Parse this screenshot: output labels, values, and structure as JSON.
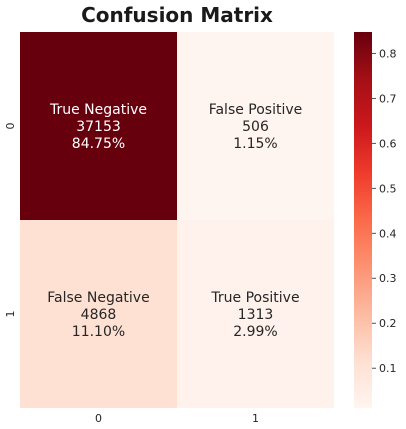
{
  "chart_data": {
    "type": "heatmap",
    "title": "Confusion Matrix",
    "row_labels": [
      "0",
      "1"
    ],
    "col_labels": [
      "0",
      "1"
    ],
    "cells": [
      [
        {
          "name": "True Negative",
          "count": "37153",
          "percent": "84.75%",
          "value": 0.8475
        },
        {
          "name": "False Positive",
          "count": "506",
          "percent": "1.15%",
          "value": 0.0115
        }
      ],
      [
        {
          "name": "False Negative",
          "count": "4868",
          "percent": "11.10%",
          "value": 0.111
        },
        {
          "name": "True Positive",
          "count": "1313",
          "percent": "2.99%",
          "value": 0.0299
        }
      ]
    ],
    "colorbar": {
      "min": 0.0115,
      "max": 0.8475,
      "ticks": [
        "0.1",
        "0.2",
        "0.3",
        "0.4",
        "0.5",
        "0.6",
        "0.7",
        "0.8"
      ],
      "tick_values": [
        0.1,
        0.2,
        0.3,
        0.4,
        0.5,
        0.6,
        0.7,
        0.8
      ],
      "colormap": "Reds"
    }
  }
}
